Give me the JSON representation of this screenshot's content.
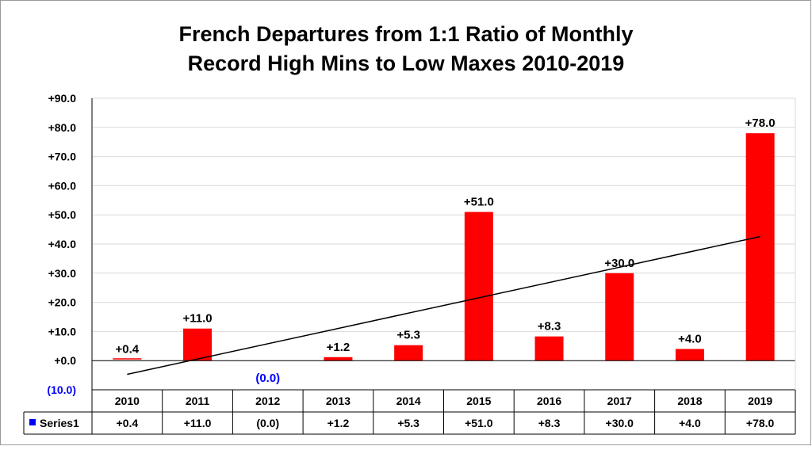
{
  "chart_data": {
    "type": "bar",
    "title_lines": [
      "French Departures from 1:1 Ratio of Monthly",
      "Record High Mins to Low Maxes 2010-2019"
    ],
    "categories": [
      "2010",
      "2011",
      "2012",
      "2013",
      "2014",
      "2015",
      "2016",
      "2017",
      "2018",
      "2019"
    ],
    "series": [
      {
        "name": "Series1",
        "values": [
          0.4,
          11.0,
          0.0,
          1.2,
          5.3,
          51.0,
          8.3,
          30.0,
          4.0,
          78.0
        ],
        "labels": [
          "+0.4",
          "+11.0",
          "(0.0)",
          "+1.2",
          "+5.3",
          "+51.0",
          "+8.3",
          "+30.0",
          "+4.0",
          "+78.0"
        ],
        "color": "#ff0000",
        "label_colors": [
          "#000000",
          "#000000",
          "#0000ff",
          "#000000",
          "#000000",
          "#000000",
          "#000000",
          "#000000",
          "#000000",
          "#000000"
        ]
      }
    ],
    "ylim": [
      -10,
      90
    ],
    "yticks": [
      90,
      80,
      70,
      60,
      50,
      40,
      30,
      20,
      10,
      0,
      -10
    ],
    "ytick_labels": [
      "+90.0",
      "+80.0",
      "+70.0",
      "+60.0",
      "+50.0",
      "+40.0",
      "+30.0",
      "+20.0",
      "+10.0",
      "+0.0",
      "(10.0)"
    ],
    "ytick_label_colors": [
      "#000000",
      "#000000",
      "#000000",
      "#000000",
      "#000000",
      "#000000",
      "#000000",
      "#000000",
      "#000000",
      "#000000",
      "#0000ff"
    ],
    "trendline": {
      "type": "linear",
      "color": "#000000"
    },
    "grid": true,
    "legend": {
      "position": "data-table",
      "marker_color": "#0000ff"
    },
    "data_table": true
  }
}
